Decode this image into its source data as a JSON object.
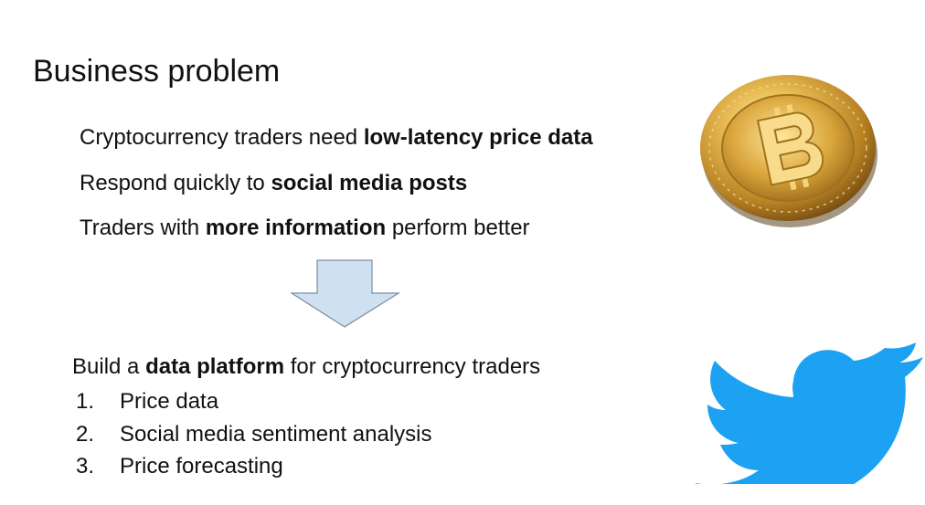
{
  "slide": {
    "title": "Business problem",
    "points": [
      {
        "before": "Cryptocurrency traders need ",
        "bold": "low-latency price data",
        "after": ""
      },
      {
        "before": "Respond quickly to ",
        "bold": "social media posts",
        "after": ""
      },
      {
        "before": "Traders with ",
        "bold": "more information",
        "after": " perform better"
      }
    ],
    "goal": {
      "before": "Build a ",
      "bold": "data platform",
      "after": " for cryptocurrency traders"
    },
    "steps": [
      {
        "num": "1.",
        "label": "Price data"
      },
      {
        "num": "2.",
        "label": "Social media sentiment analysis"
      },
      {
        "num": "3.",
        "label": "Price forecasting"
      }
    ]
  },
  "images": {
    "coin_icon": "bitcoin-coin-icon",
    "bird_icon": "twitter-bird-icon",
    "coin_color": "#d9a43a",
    "bird_color": "#1da1f2",
    "arrow_fill": "#cfe0f1",
    "arrow_stroke": "#7a8fa6"
  }
}
